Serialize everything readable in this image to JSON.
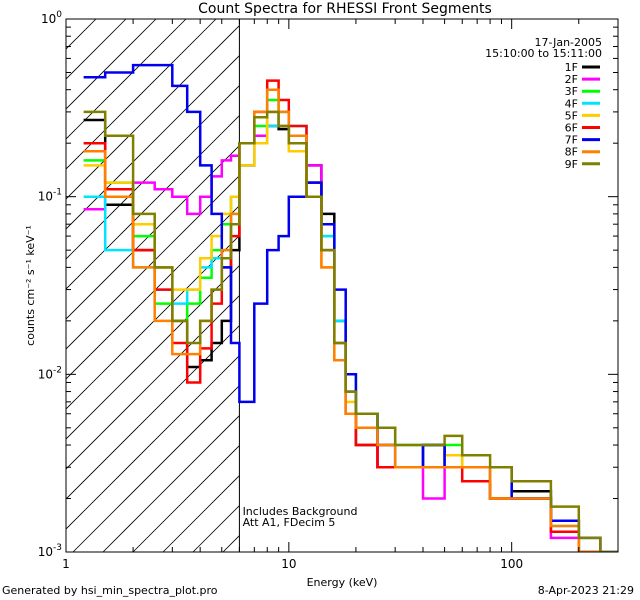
{
  "figure": {
    "title": "Count Spectra for RHESSI Front Segments",
    "footer_left": "Generated by hsi_min_spectra_plot.pro",
    "footer_right": "8-Apr-2023 21:29"
  },
  "chart_data": {
    "type": "line",
    "title": "Count Spectra for RHESSI Front Segments",
    "xlabel": "Energy (keV)",
    "ylabel": "counts cm⁻² s⁻¹ keV⁻¹",
    "xscale": "log",
    "yscale": "log",
    "xlim": [
      1,
      300
    ],
    "ylim": [
      0.001,
      1
    ],
    "x_ticks": [
      {
        "value": 1,
        "label": "1"
      },
      {
        "value": 10,
        "label": "10"
      },
      {
        "value": 100,
        "label": "100"
      }
    ],
    "y_ticks": [
      {
        "value": 1,
        "base": "10",
        "exp": "0"
      },
      {
        "value": 0.1,
        "base": "10",
        "exp": "-1"
      },
      {
        "value": 0.01,
        "base": "10",
        "exp": "-2"
      },
      {
        "value": 0.001,
        "base": "10",
        "exp": "-3"
      }
    ],
    "date": "17-Jan-2005",
    "time_range": "15:10:00 to 15:11:00",
    "annotations": [
      "Includes Background",
      "Att A1, FDecim  5"
    ],
    "hatched_region_below_keV": 6,
    "legend_position": "top-right",
    "series": [
      {
        "name": "1F",
        "color": "#000000",
        "x": [
          1.2,
          1.5,
          2.0,
          2.5,
          3.0,
          3.5,
          4.0,
          4.5,
          5.0,
          5.5,
          6.0,
          7,
          8,
          9,
          10,
          12,
          14,
          16,
          18,
          20,
          25,
          30,
          40,
          50,
          60,
          80,
          100,
          150,
          200,
          250
        ],
        "y": [
          0.27,
          0.09,
          0.05,
          0.04,
          0.02,
          0.011,
          0.012,
          0.015,
          0.02,
          0.05,
          0.15,
          0.2,
          0.25,
          0.24,
          0.2,
          0.15,
          0.08,
          0.02,
          0.006,
          0.004,
          0.003,
          0.003,
          0.004,
          0.003,
          0.003,
          0.002,
          0.0022,
          0.0015,
          0.001,
          0.0009
        ]
      },
      {
        "name": "2F",
        "color": "#ff00ff",
        "x": [
          1.2,
          1.5,
          2.0,
          2.5,
          3.0,
          3.5,
          4.0,
          4.5,
          5.0,
          5.5,
          6.0,
          7,
          8,
          9,
          10,
          12,
          14,
          16,
          18,
          20,
          25,
          30,
          40,
          50,
          60,
          80,
          100,
          150,
          200,
          250
        ],
        "y": [
          0.085,
          0.1,
          0.12,
          0.11,
          0.1,
          0.08,
          0.1,
          0.13,
          0.16,
          0.17,
          0.2,
          0.22,
          0.3,
          0.25,
          0.22,
          0.15,
          0.07,
          0.02,
          0.008,
          0.005,
          0.003,
          0.003,
          0.002,
          0.0035,
          0.003,
          0.002,
          0.002,
          0.0012,
          0.001,
          0.0009
        ]
      },
      {
        "name": "3F",
        "color": "#00ff00",
        "x": [
          1.2,
          1.5,
          2.0,
          2.5,
          3.0,
          3.5,
          4.0,
          4.5,
          5.0,
          5.5,
          6.0,
          7,
          8,
          9,
          10,
          12,
          14,
          16,
          18,
          20,
          25,
          30,
          40,
          50,
          60,
          80,
          100,
          150,
          200,
          250
        ],
        "y": [
          0.16,
          0.12,
          0.06,
          0.025,
          0.02,
          0.025,
          0.035,
          0.05,
          0.07,
          0.1,
          0.2,
          0.25,
          0.35,
          0.3,
          0.2,
          0.12,
          0.06,
          0.02,
          0.01,
          0.006,
          0.005,
          0.004,
          0.004,
          0.004,
          0.003,
          0.003,
          0.002,
          0.0015,
          0.001,
          0.0009
        ]
      },
      {
        "name": "4F",
        "color": "#00e5ff",
        "x": [
          1.2,
          1.5,
          2.0,
          2.5,
          3.0,
          3.5,
          4.0,
          4.5,
          5.0,
          5.5,
          6.0,
          7,
          8,
          9,
          10,
          12,
          14,
          16,
          18,
          20,
          25,
          30,
          40,
          50,
          60,
          80,
          100,
          150,
          200,
          250
        ],
        "y": [
          0.1,
          0.05,
          0.04,
          0.03,
          0.025,
          0.03,
          0.04,
          0.045,
          0.05,
          0.08,
          0.15,
          0.2,
          0.25,
          0.3,
          0.25,
          0.12,
          0.06,
          0.02,
          0.008,
          0.005,
          0.004,
          0.003,
          0.003,
          0.003,
          0.003,
          0.002,
          0.002,
          0.0014,
          0.001,
          0.0008
        ]
      },
      {
        "name": "5F",
        "color": "#ffcc00",
        "x": [
          1.2,
          1.5,
          2.0,
          2.5,
          3.0,
          3.5,
          4.0,
          4.5,
          5.0,
          5.5,
          6.0,
          7,
          8,
          9,
          10,
          12,
          14,
          16,
          18,
          20,
          25,
          30,
          40,
          50,
          60,
          80,
          100,
          150,
          200,
          250
        ],
        "y": [
          0.15,
          0.12,
          0.07,
          0.04,
          0.03,
          0.03,
          0.045,
          0.06,
          0.08,
          0.1,
          0.15,
          0.2,
          0.3,
          0.25,
          0.18,
          0.1,
          0.04,
          0.012,
          0.007,
          0.005,
          0.004,
          0.003,
          0.003,
          0.0035,
          0.003,
          0.002,
          0.002,
          0.0015,
          0.001,
          0.0008
        ]
      },
      {
        "name": "6F",
        "color": "#ff0000",
        "x": [
          1.2,
          1.5,
          2.0,
          2.5,
          3.0,
          3.5,
          4.0,
          4.5,
          5.0,
          5.5,
          6.0,
          7,
          8,
          9,
          10,
          12,
          14,
          16,
          18,
          20,
          25,
          30,
          40,
          50,
          60,
          80,
          100,
          150,
          200,
          250
        ],
        "y": [
          0.2,
          0.11,
          0.05,
          0.03,
          0.015,
          0.009,
          0.014,
          0.025,
          0.04,
          0.06,
          0.2,
          0.3,
          0.45,
          0.35,
          0.25,
          0.12,
          0.05,
          0.015,
          0.006,
          0.004,
          0.003,
          0.003,
          0.003,
          0.003,
          0.0025,
          0.002,
          0.002,
          0.0013,
          0.001,
          0.0008
        ]
      },
      {
        "name": "7F",
        "color": "#0000ee",
        "x": [
          1.2,
          1.5,
          2.0,
          2.5,
          3.0,
          3.5,
          4.0,
          4.5,
          5.0,
          5.5,
          6.0,
          7,
          8,
          9,
          10,
          12,
          14,
          16,
          18,
          20,
          25,
          30,
          40,
          50,
          60,
          80,
          100,
          150,
          200,
          250
        ],
        "y": [
          0.47,
          0.5,
          0.55,
          0.55,
          0.42,
          0.3,
          0.15,
          0.08,
          0.04,
          0.015,
          0.007,
          0.025,
          0.05,
          0.06,
          0.1,
          0.12,
          0.07,
          0.03,
          0.01,
          0.006,
          0.004,
          0.003,
          0.004,
          0.003,
          0.003,
          0.003,
          0.002,
          0.0015,
          0.0012,
          0.001
        ]
      },
      {
        "name": "8F",
        "color": "#ff8000",
        "x": [
          1.2,
          1.5,
          2.0,
          2.5,
          3.0,
          3.5,
          4.0,
          4.5,
          5.0,
          5.5,
          6.0,
          7,
          8,
          9,
          10,
          12,
          14,
          16,
          18,
          20,
          25,
          30,
          40,
          50,
          60,
          80,
          100,
          150,
          200,
          250
        ],
        "y": [
          0.18,
          0.1,
          0.04,
          0.02,
          0.013,
          0.013,
          0.02,
          0.03,
          0.05,
          0.08,
          0.2,
          0.3,
          0.4,
          0.3,
          0.22,
          0.1,
          0.04,
          0.012,
          0.006,
          0.005,
          0.004,
          0.003,
          0.003,
          0.003,
          0.003,
          0.002,
          0.002,
          0.0014,
          0.001,
          0.0009
        ]
      },
      {
        "name": "9F",
        "color": "#808000",
        "x": [
          1.2,
          1.5,
          2.0,
          2.5,
          3.0,
          3.5,
          4.0,
          4.5,
          5.0,
          5.5,
          6.0,
          7,
          8,
          9,
          10,
          12,
          14,
          16,
          18,
          20,
          25,
          30,
          40,
          50,
          60,
          80,
          100,
          150,
          200,
          250
        ],
        "y": [
          0.3,
          0.22,
          0.08,
          0.04,
          0.02,
          0.015,
          0.02,
          0.03,
          0.045,
          0.07,
          0.2,
          0.28,
          0.3,
          0.25,
          0.2,
          0.1,
          0.05,
          0.015,
          0.008,
          0.006,
          0.005,
          0.004,
          0.004,
          0.0045,
          0.0035,
          0.003,
          0.0025,
          0.0018,
          0.0012,
          0.001
        ]
      }
    ]
  }
}
